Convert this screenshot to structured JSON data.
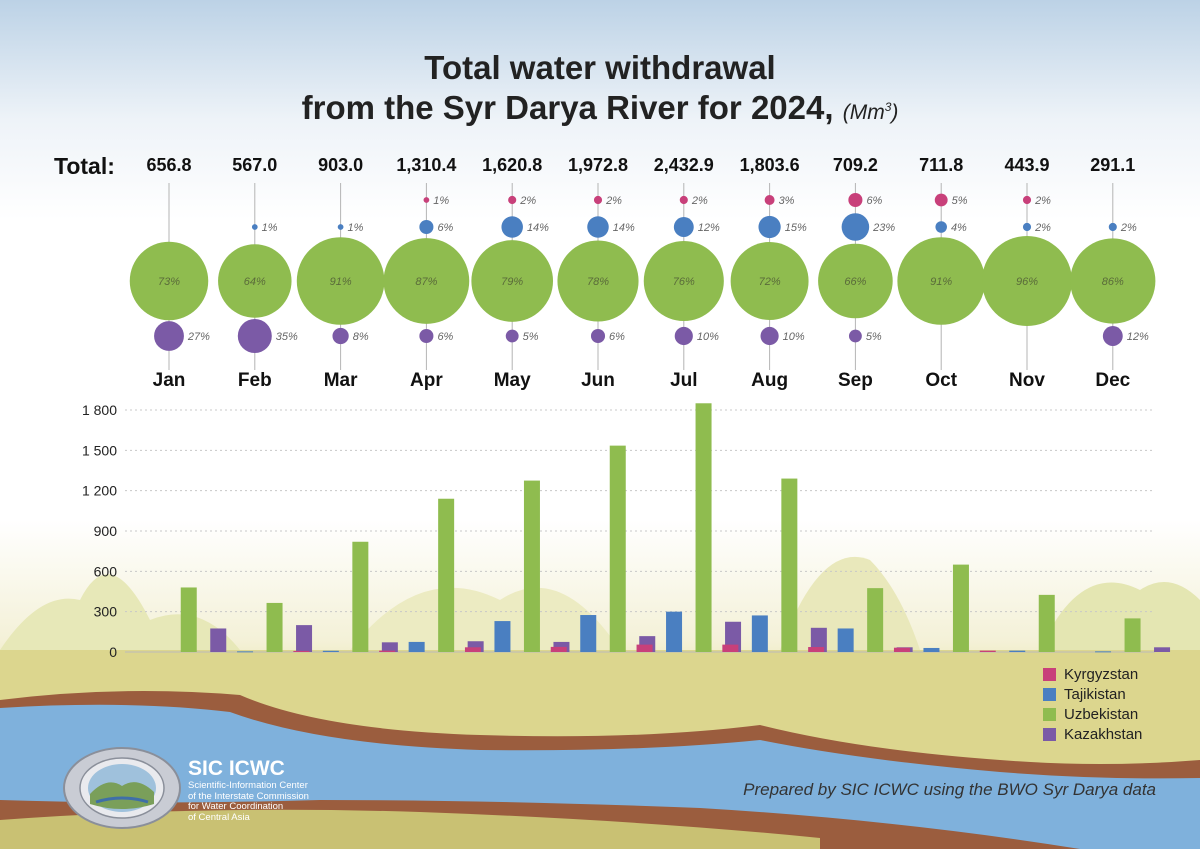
{
  "title": {
    "line1": "Total water withdrawal",
    "line2": "from the Syr Darya River for 2024,",
    "unit_prefix": "(Mm",
    "unit_exp": "3",
    "unit_suffix": ")"
  },
  "totals_label": "Total:",
  "colors": {
    "Kyrgyzstan": "#c8407a",
    "Tajikistan": "#4a7fc1",
    "Uzbekistan": "#8fbc4f",
    "Kazakhstan": "#7b5aa6"
  },
  "legend": [
    "Kyrgyzstan",
    "Tajikistan",
    "Uzbekistan",
    "Kazakhstan"
  ],
  "chart_data": [
    {
      "type": "bubble",
      "months": [
        "Jan",
        "Feb",
        "Mar",
        "Apr",
        "May",
        "Jun",
        "Jul",
        "Aug",
        "Sep",
        "Oct",
        "Nov",
        "Dec"
      ],
      "totals": [
        "656.8",
        "567.0",
        "903.0",
        "1,310.4",
        "1,620.8",
        "1,972.8",
        "2,432.9",
        "1,803.6",
        "709.2",
        "711.8",
        "443.9",
        "291.1"
      ],
      "shares": {
        "Kyrgyzstan": [
          null,
          null,
          null,
          1,
          2,
          2,
          2,
          3,
          6,
          5,
          2,
          null
        ],
        "Tajikistan": [
          null,
          1,
          1,
          6,
          14,
          14,
          12,
          15,
          23,
          4,
          2,
          2
        ],
        "Uzbekistan": [
          73,
          64,
          91,
          87,
          79,
          78,
          76,
          72,
          66,
          91,
          96,
          86
        ],
        "Kazakhstan": [
          27,
          35,
          8,
          6,
          5,
          6,
          10,
          10,
          5,
          null,
          null,
          12
        ]
      }
    },
    {
      "type": "bar",
      "categories": [
        "Jan",
        "Feb",
        "Mar",
        "Apr",
        "May",
        "Jun",
        "Jul",
        "Aug",
        "Sep",
        "Oct",
        "Nov",
        "Dec"
      ],
      "ylim": [
        0,
        1800
      ],
      "yticks": [
        "0",
        "300",
        "600",
        "900",
        "1 200",
        "1 500",
        "1 800"
      ],
      "grid": true,
      "legend_position": "bottom-right",
      "series": [
        {
          "name": "Kyrgyzstan",
          "values": [
            0,
            0,
            8,
            10,
            35,
            38,
            55,
            55,
            37,
            32,
            10,
            0
          ]
        },
        {
          "name": "Tajikistan",
          "values": [
            0,
            5,
            9,
            75,
            230,
            275,
            300,
            272,
            175,
            30,
            10,
            5
          ]
        },
        {
          "name": "Uzbekistan",
          "values": [
            480,
            365,
            820,
            1140,
            1275,
            1535,
            1850,
            1290,
            475,
            650,
            425,
            250
          ]
        },
        {
          "name": "Kazakhstan",
          "values": [
            175,
            200,
            72,
            80,
            75,
            118,
            225,
            180,
            35,
            0,
            0,
            35
          ]
        }
      ]
    }
  ],
  "org": {
    "name": "SIC ICWC",
    "description": "Scientific-Information Center\nof the Interstate Commission\nfor Water Coordination\nof Central Asia"
  },
  "credit": "Prepared by SIC ICWC using the BWO Syr Darya data"
}
